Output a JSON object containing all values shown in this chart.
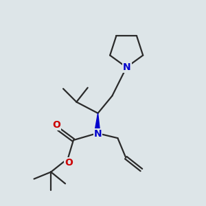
{
  "background_color": "#dde5e8",
  "bond_color": "#2a2a2a",
  "N_color": "#0000cc",
  "O_color": "#cc0000",
  "bond_width": 1.6,
  "wedge_bond_color": "#0000cc",
  "fig_w": 3.0,
  "fig_h": 3.0,
  "dpi": 100,
  "xlim": [
    0,
    10
  ],
  "ylim": [
    0,
    10
  ]
}
